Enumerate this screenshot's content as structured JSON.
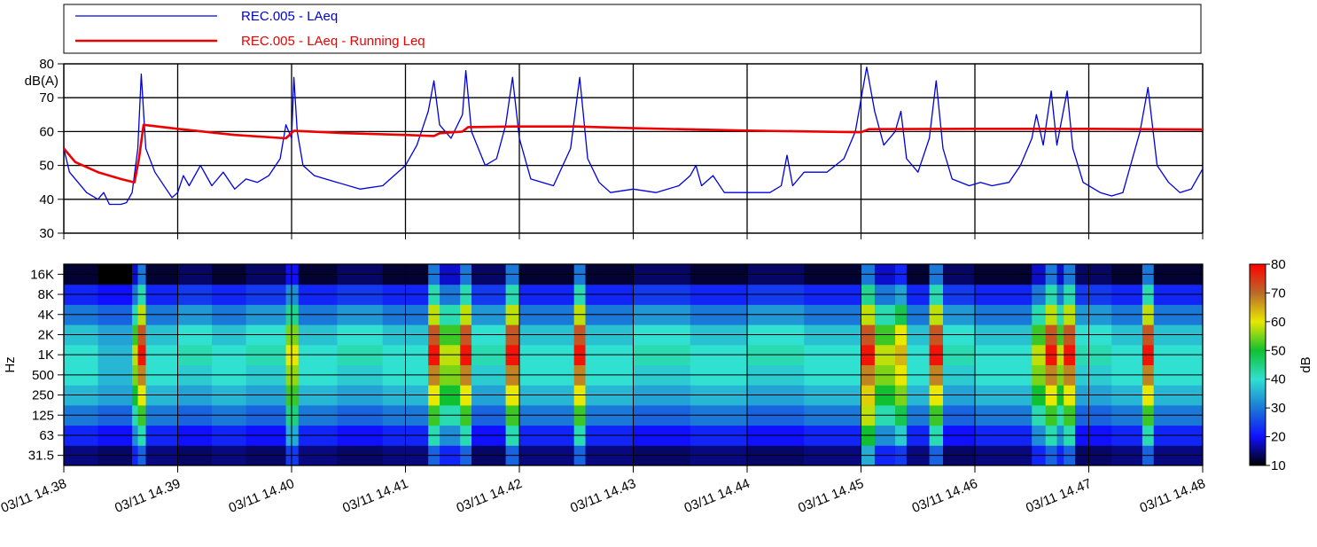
{
  "chart_data": [
    {
      "type": "line",
      "ylabel": "dB(A)",
      "xlim": [
        38,
        48
      ],
      "xticks": [
        38,
        39,
        40,
        41,
        42,
        43,
        44,
        45,
        46,
        47,
        48
      ],
      "ylim": [
        30,
        80
      ],
      "yticks": [
        30,
        40,
        50,
        60,
        70,
        80
      ],
      "grid": true,
      "series": [
        {
          "name": "REC.005 - LAeq",
          "color": "#0000dd",
          "width": 1.3,
          "x": [
            38.0,
            38.05,
            38.1,
            38.2,
            38.3,
            38.35,
            38.4,
            38.5,
            38.55,
            38.6,
            38.65,
            38.68,
            38.72,
            38.8,
            38.9,
            38.95,
            39.0,
            39.05,
            39.1,
            39.2,
            39.3,
            39.4,
            39.5,
            39.6,
            39.7,
            39.8,
            39.9,
            39.95,
            40.0,
            40.02,
            40.05,
            40.1,
            40.2,
            40.4,
            40.6,
            40.8,
            40.9,
            41.0,
            41.1,
            41.2,
            41.25,
            41.3,
            41.4,
            41.5,
            41.53,
            41.58,
            41.7,
            41.8,
            41.88,
            41.94,
            42.0,
            42.1,
            42.3,
            42.45,
            42.53,
            42.6,
            42.7,
            42.8,
            43.0,
            43.2,
            43.4,
            43.5,
            43.55,
            43.6,
            43.7,
            43.8,
            44.0,
            44.2,
            44.3,
            44.35,
            44.4,
            44.5,
            44.7,
            44.85,
            44.95,
            45.05,
            45.12,
            45.2,
            45.3,
            45.35,
            45.4,
            45.5,
            45.6,
            45.66,
            45.72,
            45.8,
            45.95,
            46.05,
            46.15,
            46.3,
            46.4,
            46.5,
            46.54,
            46.6,
            46.67,
            46.72,
            46.81,
            46.86,
            46.95,
            47.1,
            47.2,
            47.3,
            47.45,
            47.52,
            47.6,
            47.7,
            47.8,
            47.9,
            48.0
          ],
          "values": [
            55,
            48,
            46,
            42,
            40,
            42,
            38.5,
            38.5,
            39,
            42,
            55,
            77,
            55,
            48,
            43,
            40.5,
            42,
            47,
            44,
            50,
            44,
            48,
            43,
            46,
            45,
            47,
            52,
            62,
            58,
            76,
            60,
            50,
            47,
            45,
            43,
            44,
            47,
            50,
            56,
            66,
            75,
            62,
            58,
            65,
            78,
            60,
            50,
            52,
            62,
            76,
            58,
            46,
            44,
            55,
            76,
            52,
            45,
            42,
            43,
            42,
            44,
            47,
            50,
            44,
            47,
            42,
            42,
            42,
            44,
            53,
            44,
            48,
            48,
            52,
            60,
            79,
            66,
            56,
            60,
            66,
            52,
            48,
            58,
            75,
            55,
            46,
            44,
            45,
            44,
            45,
            50,
            58,
            65,
            56,
            72,
            56,
            72,
            55,
            45,
            42,
            41,
            42,
            60,
            73,
            50,
            45,
            42,
            43,
            49
          ]
        },
        {
          "name": "REC.005 - LAeq - Running Leq",
          "color": "#ee0000",
          "width": 2.6,
          "x": [
            38.0,
            38.1,
            38.3,
            38.5,
            38.62,
            38.66,
            38.7,
            39.0,
            39.5,
            39.95,
            40.02,
            40.5,
            41.0,
            41.25,
            41.3,
            41.5,
            41.55,
            41.94,
            42.5,
            43.0,
            44.0,
            45.0,
            45.07,
            46.0,
            47.0,
            48.0
          ],
          "values": [
            55,
            51,
            48,
            46,
            45,
            52,
            62,
            60.8,
            59,
            58,
            60.2,
            59.5,
            59,
            58.7,
            59.5,
            60,
            61.3,
            61.5,
            61.5,
            61,
            60.3,
            59.8,
            60.7,
            60.8,
            60.8,
            60.6
          ]
        }
      ]
    },
    {
      "type": "heatmap",
      "ylabel": "Hz",
      "colorbar_label": "dB",
      "grid": true,
      "xlim": [
        38,
        48
      ],
      "xticks": [
        {
          "value": 38,
          "label": "03/11 14.38"
        },
        {
          "value": 39,
          "label": "03/11 14.39"
        },
        {
          "value": 40,
          "label": "03/11 14.40"
        },
        {
          "value": 41,
          "label": "03/11 14.41"
        },
        {
          "value": 42,
          "label": "03/11 14.42"
        },
        {
          "value": 43,
          "label": "03/11 14.43"
        },
        {
          "value": 44,
          "label": "03/11 14.44"
        },
        {
          "value": 45,
          "label": "03/11 14.45"
        },
        {
          "value": 46,
          "label": "03/11 14.46"
        },
        {
          "value": 47,
          "label": "03/11 14.47"
        },
        {
          "value": 48,
          "label": "03/11 14.48"
        }
      ],
      "categories": [
        "31.5",
        "63",
        "125",
        "250",
        "500",
        "1K",
        "2K",
        "4K",
        "8K",
        "16K"
      ],
      "zlim": [
        10,
        80
      ],
      "zticks": [
        10,
        20,
        30,
        40,
        50,
        60,
        70,
        80
      ],
      "colorscale": [
        "#000000",
        "#1010ff",
        "#1a78d8",
        "#30e0d0",
        "#10c030",
        "#e8e800",
        "#b86a2a",
        "#ff0000"
      ],
      "bins": [
        38,
        38.3,
        38.6,
        38.65,
        38.72,
        39,
        39.3,
        39.6,
        39.95,
        40.06,
        40.4,
        40.8,
        41.2,
        41.3,
        41.48,
        41.58,
        41.88,
        42,
        42.48,
        42.58,
        43,
        43.5,
        44,
        44.5,
        45,
        45.12,
        45.3,
        45.4,
        45.6,
        45.72,
        46,
        46.5,
        46.62,
        46.72,
        46.78,
        46.88,
        47.2,
        47.47,
        47.57,
        48
      ],
      "z": [
        [
          15,
          22,
          30,
          36,
          40,
          40,
          37,
          30,
          22,
          12
        ],
        [
          14,
          20,
          28,
          34,
          36,
          36,
          34,
          28,
          20,
          10
        ],
        [
          22,
          32,
          42,
          50,
          55,
          58,
          52,
          42,
          30,
          18
        ],
        [
          28,
          42,
          52,
          60,
          68,
          78,
          72,
          58,
          42,
          30
        ],
        [
          15,
          22,
          30,
          36,
          40,
          40,
          37,
          30,
          22,
          12
        ],
        [
          14,
          20,
          28,
          34,
          38,
          42,
          40,
          33,
          24,
          14
        ],
        [
          15,
          22,
          30,
          36,
          40,
          40,
          37,
          30,
          22,
          12
        ],
        [
          14,
          20,
          28,
          34,
          38,
          42,
          40,
          33,
          24,
          14
        ],
        [
          24,
          35,
          45,
          52,
          56,
          60,
          55,
          44,
          32,
          20
        ],
        [
          15,
          22,
          30,
          36,
          40,
          40,
          37,
          30,
          22,
          12
        ],
        [
          14,
          20,
          28,
          34,
          38,
          42,
          40,
          33,
          24,
          14
        ],
        [
          15,
          22,
          30,
          36,
          40,
          40,
          37,
          30,
          22,
          12
        ],
        [
          28,
          42,
          52,
          60,
          68,
          78,
          72,
          58,
          42,
          30
        ],
        [
          22,
          32,
          42,
          50,
          55,
          58,
          52,
          42,
          30,
          18
        ],
        [
          28,
          42,
          52,
          60,
          68,
          78,
          72,
          58,
          42,
          30
        ],
        [
          14,
          20,
          28,
          34,
          38,
          42,
          40,
          33,
          24,
          14
        ],
        [
          28,
          42,
          52,
          60,
          68,
          78,
          72,
          58,
          42,
          30
        ],
        [
          15,
          22,
          30,
          36,
          40,
          40,
          37,
          30,
          22,
          12
        ],
        [
          28,
          42,
          52,
          60,
          68,
          78,
          72,
          58,
          42,
          30
        ],
        [
          15,
          22,
          30,
          36,
          40,
          40,
          37,
          30,
          22,
          12
        ],
        [
          14,
          20,
          28,
          34,
          38,
          42,
          40,
          33,
          24,
          14
        ],
        [
          15,
          22,
          30,
          36,
          40,
          40,
          37,
          30,
          22,
          12
        ],
        [
          14,
          20,
          28,
          34,
          38,
          42,
          40,
          33,
          24,
          14
        ],
        [
          15,
          22,
          30,
          36,
          40,
          40,
          37,
          30,
          22,
          12
        ],
        [
          35,
          50,
          58,
          62,
          68,
          78,
          72,
          58,
          44,
          30
        ],
        [
          22,
          32,
          42,
          50,
          55,
          58,
          52,
          42,
          30,
          18
        ],
        [
          24,
          38,
          48,
          55,
          60,
          64,
          60,
          48,
          34,
          22
        ],
        [
          15,
          22,
          30,
          36,
          40,
          40,
          37,
          30,
          22,
          12
        ],
        [
          28,
          42,
          52,
          60,
          68,
          78,
          72,
          58,
          42,
          30
        ],
        [
          14,
          20,
          28,
          34,
          38,
          42,
          40,
          33,
          24,
          14
        ],
        [
          15,
          22,
          30,
          36,
          40,
          40,
          37,
          30,
          22,
          12
        ],
        [
          22,
          32,
          42,
          50,
          55,
          58,
          52,
          42,
          30,
          18
        ],
        [
          28,
          42,
          52,
          60,
          68,
          78,
          72,
          58,
          42,
          30
        ],
        [
          22,
          32,
          42,
          50,
          55,
          58,
          52,
          42,
          30,
          18
        ],
        [
          28,
          42,
          52,
          60,
          68,
          78,
          72,
          58,
          42,
          30
        ],
        [
          14,
          20,
          28,
          34,
          38,
          42,
          40,
          33,
          24,
          14
        ],
        [
          15,
          22,
          30,
          36,
          40,
          40,
          37,
          30,
          22,
          12
        ],
        [
          28,
          42,
          52,
          60,
          68,
          78,
          72,
          58,
          42,
          30
        ],
        [
          15,
          22,
          30,
          36,
          40,
          40,
          37,
          30,
          22,
          12
        ]
      ]
    }
  ]
}
